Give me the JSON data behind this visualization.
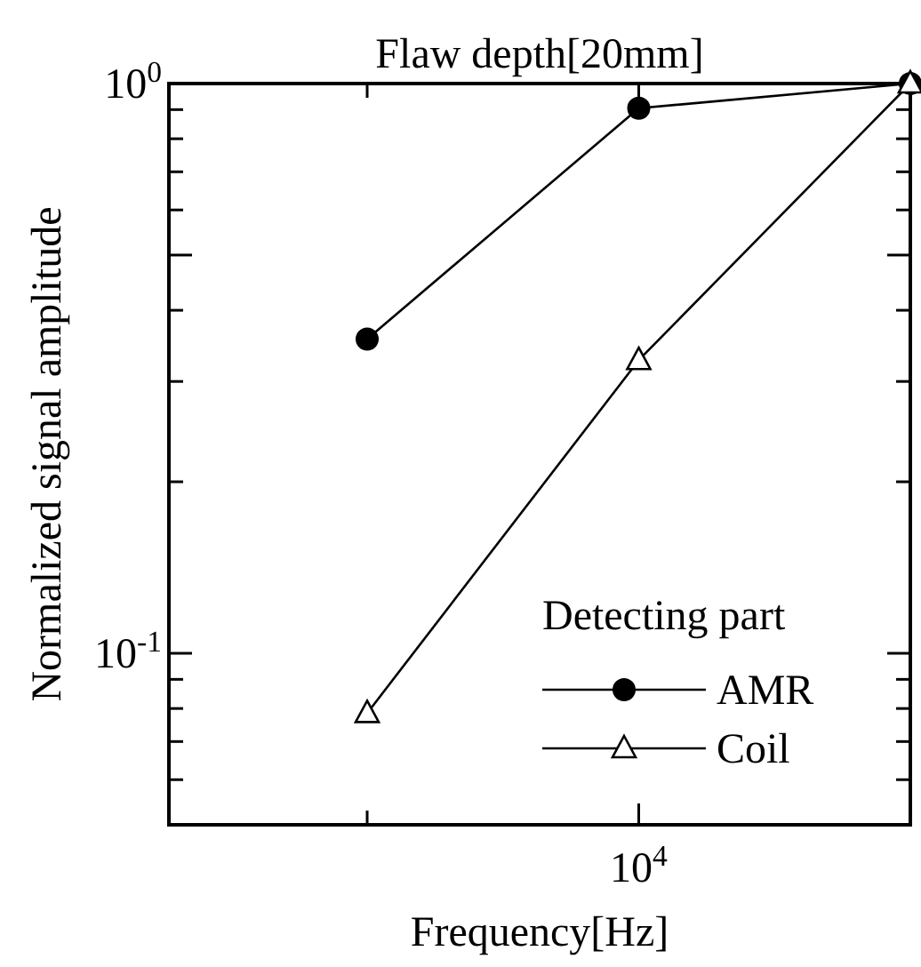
{
  "chart_data": {
    "type": "line",
    "title": "Flaw depth[20mm]",
    "xlabel": "Frequency[Hz]",
    "ylabel": "Normalized signal amplitude",
    "legend_title": "Detecting part",
    "legend": "bottom right",
    "log": "y",
    "grid": false,
    "categories": [
      null,
      null,
      null
    ],
    "annotations": [
      "10$^{4}$"
    ],
    "ylim": [
      0.05,
      1
    ],
    "yticks": [
      {
        "value": 0.06,
        "label": null
      },
      {
        "value": 0.07,
        "label": null
      },
      {
        "value": 0.08,
        "label": null
      },
      {
        "value": 0.09,
        "label": null
      },
      {
        "value": 0.1,
        "label": "10$^{-1}$"
      },
      {
        "value": 0.2,
        "label": null
      },
      {
        "value": 0.3,
        "label": null
      },
      {
        "value": 0.4,
        "label": null
      },
      {
        "value": 0.5,
        "label": null
      },
      {
        "value": 0.6,
        "label": null
      },
      {
        "value": 0.7,
        "label": null
      },
      {
        "value": 0.8,
        "label": null
      },
      {
        "value": 0.9,
        "label": null
      },
      {
        "value": 1,
        "label": "10$^{0}$"
      }
    ],
    "series": [
      {
        "name": "AMR",
        "color": "#000000",
        "marker": "circle",
        "values": [
          0.356,
          0.905,
          1.0
        ]
      },
      {
        "name": "Coil",
        "color": "#000000",
        "marker": "triangle",
        "values": [
          0.0785,
          0.327,
          1.0
        ]
      }
    ]
  }
}
